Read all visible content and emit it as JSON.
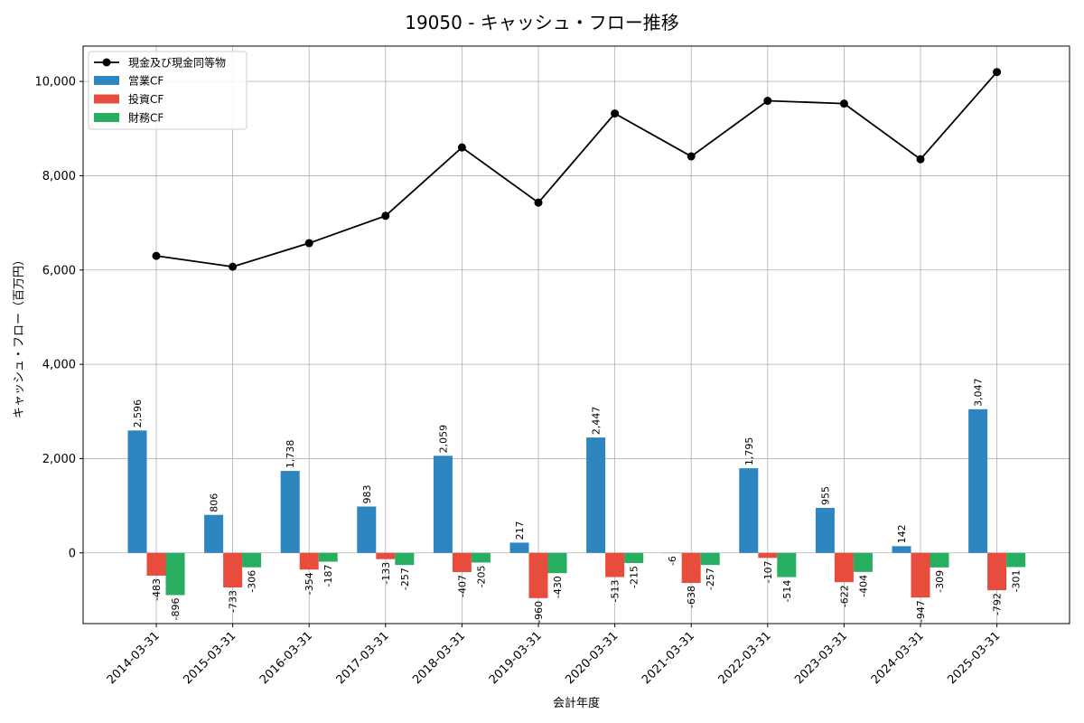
{
  "chart_data": {
    "type": "bar",
    "title": "19050 - キャッシュ・フロー推移",
    "xlabel": "会計年度",
    "ylabel": "キャッシュ・フロー（百万円）",
    "categories": [
      "2014-03-31",
      "2015-03-31",
      "2016-03-31",
      "2017-03-31",
      "2018-03-31",
      "2019-03-31",
      "2020-03-31",
      "2021-03-31",
      "2022-03-31",
      "2023-03-31",
      "2024-03-31",
      "2025-03-31"
    ],
    "ylim": [
      -1500,
      10750
    ],
    "yticks": [
      0,
      2000,
      4000,
      6000,
      8000,
      10000
    ],
    "ytick_labels": [
      "0",
      "2,000",
      "4,000",
      "6,000",
      "8,000",
      "10,000"
    ],
    "grid": true,
    "legend_position": "top-left",
    "line_series": {
      "name": "現金及び現金同等物",
      "color": "#000000",
      "values": [
        6300,
        6070,
        6570,
        7150,
        8600,
        7430,
        9320,
        8410,
        9590,
        9530,
        8350,
        10200
      ]
    },
    "series": [
      {
        "name": "営業CF",
        "color": "#2e86c1",
        "values": [
          2596,
          806,
          1738,
          983,
          2059,
          217,
          2447,
          -6,
          1795,
          955,
          142,
          3047
        ],
        "labels": [
          "2,596",
          "806",
          "1,738",
          "983",
          "2,059",
          "217",
          "2,447",
          "-6",
          "1,795",
          "955",
          "142",
          "3,047"
        ]
      },
      {
        "name": "投資CF",
        "color": "#e74c3c",
        "values": [
          -483,
          -733,
          -354,
          -133,
          -407,
          -960,
          -513,
          -638,
          -107,
          -622,
          -947,
          -792
        ],
        "labels": [
          "-483",
          "-733",
          "-354",
          "-133",
          "-407",
          "-960",
          "-513",
          "-638",
          "-107",
          "-622",
          "-947",
          "-792"
        ]
      },
      {
        "name": "財務CF",
        "color": "#27ae60",
        "values": [
          -896,
          -306,
          -187,
          -257,
          -205,
          -430,
          -215,
          -257,
          -514,
          -404,
          -309,
          -301
        ],
        "labels": [
          "-896",
          "-306",
          "-187",
          "-257",
          "-205",
          "-430",
          "-215",
          "-257",
          "-514",
          "-404",
          "-309",
          "-301"
        ]
      }
    ]
  }
}
